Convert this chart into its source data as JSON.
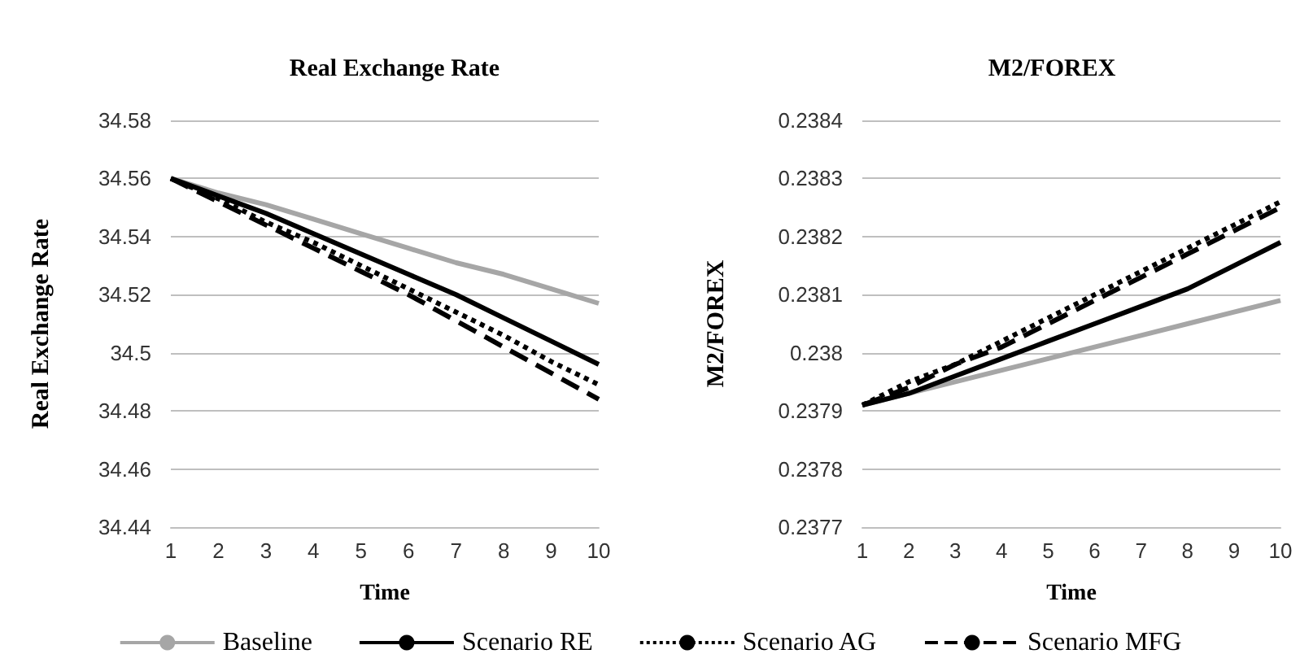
{
  "chart_data": [
    {
      "type": "line",
      "title": "Real Exchange Rate",
      "xlabel": "Time",
      "ylabel": "Real Exchange Rate",
      "categories": [
        "1",
        "2",
        "3",
        "4",
        "5",
        "6",
        "7",
        "8",
        "9",
        "10"
      ],
      "ylim": [
        34.44,
        34.58
      ],
      "yticks": [
        34.44,
        34.46,
        34.48,
        34.5,
        34.52,
        34.54,
        34.56,
        34.58
      ],
      "grid": "y",
      "legend": "bottom",
      "marker": "none",
      "series": [
        {
          "name": "Baseline",
          "color": "#a6a6a6",
          "line_style": "solid",
          "values": [
            34.56,
            34.555,
            34.551,
            34.546,
            34.541,
            34.536,
            34.531,
            34.527,
            34.522,
            34.517
          ]
        },
        {
          "name": "Scenario RE",
          "color": "#000000",
          "line_style": "solid",
          "values": [
            34.56,
            34.554,
            34.548,
            34.541,
            34.534,
            34.527,
            34.52,
            34.512,
            34.504,
            34.496
          ]
        },
        {
          "name": "Scenario AG",
          "color": "#000000",
          "line_style": "dotted",
          "values": [
            34.56,
            34.553,
            34.545,
            34.538,
            34.53,
            34.522,
            34.514,
            34.506,
            34.497,
            34.489
          ]
        },
        {
          "name": "Scenario MFG",
          "color": "#000000",
          "line_style": "dashed",
          "values": [
            34.56,
            34.552,
            34.544,
            34.536,
            34.528,
            34.52,
            34.511,
            34.502,
            34.493,
            34.484
          ]
        }
      ]
    },
    {
      "type": "line",
      "title": "M2/FOREX",
      "xlabel": "Time",
      "ylabel": "M2/FOREX",
      "categories": [
        "1",
        "2",
        "3",
        "4",
        "5",
        "6",
        "7",
        "8",
        "9",
        "10"
      ],
      "ylim": [
        0.2377,
        0.2384
      ],
      "yticks": [
        0.2377,
        0.2378,
        0.2379,
        0.238,
        0.2381,
        0.2382,
        0.2383,
        0.2384
      ],
      "grid": "y",
      "legend": "bottom",
      "marker": "none",
      "series": [
        {
          "name": "Baseline",
          "color": "#a6a6a6",
          "line_style": "solid",
          "values": [
            0.23791,
            0.23793,
            0.23795,
            0.23797,
            0.23799,
            0.23801,
            0.23803,
            0.23805,
            0.23807,
            0.23809
          ]
        },
        {
          "name": "Scenario RE",
          "color": "#000000",
          "line_style": "solid",
          "values": [
            0.23791,
            0.23793,
            0.23796,
            0.23799,
            0.23802,
            0.23805,
            0.23808,
            0.23811,
            0.23815,
            0.23819
          ]
        },
        {
          "name": "Scenario AG",
          "color": "#000000",
          "line_style": "dotted",
          "values": [
            0.23791,
            0.23795,
            0.23798,
            0.23802,
            0.23806,
            0.2381,
            0.23814,
            0.23818,
            0.23822,
            0.23826
          ]
        },
        {
          "name": "Scenario MFG",
          "color": "#000000",
          "line_style": "dashed",
          "values": [
            0.23791,
            0.23794,
            0.23798,
            0.23801,
            0.23805,
            0.23809,
            0.23813,
            0.23817,
            0.23821,
            0.23825
          ]
        }
      ]
    }
  ]
}
